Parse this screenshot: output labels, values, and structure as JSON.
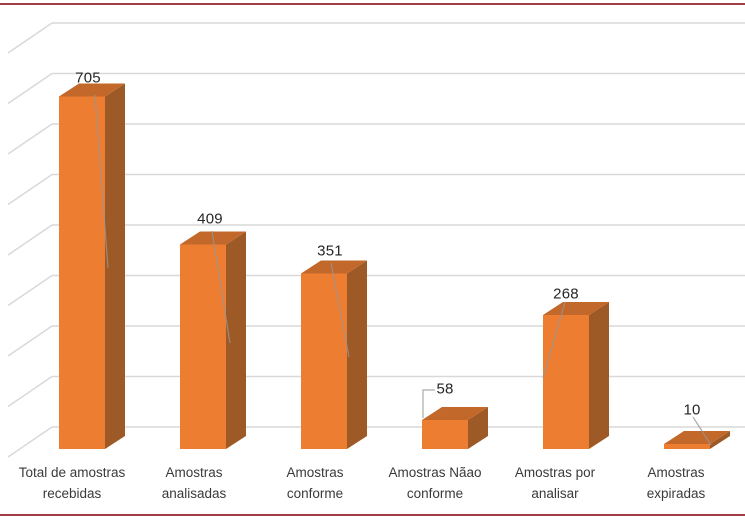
{
  "chart_data": {
    "type": "bar",
    "variant": "3d-column",
    "categories": [
      "Total de amostras recebidas",
      "Amostras analisadas",
      "Amostras conforme",
      "Amostras Nãao conforme",
      "Amostras por analisar",
      "Amostras expiradas"
    ],
    "category_lines": [
      [
        "Total de amostras",
        "recebidas"
      ],
      [
        "Amostras",
        "analisadas"
      ],
      [
        "Amostras",
        "conforme"
      ],
      [
        "Amostras Nãao",
        "conforme"
      ],
      [
        "Amostras por",
        "analisar"
      ],
      [
        "Amostras",
        "expiradas"
      ]
    ],
    "values": [
      705,
      409,
      351,
      58,
      268,
      10
    ],
    "data_labels": [
      "705",
      "409",
      "351",
      "58",
      "268",
      "10"
    ],
    "title": "",
    "xlabel": "",
    "ylabel": "",
    "ylim": [
      0,
      800
    ],
    "gridline_step": 100,
    "grid": true,
    "legend": false,
    "y_tick_labels_visible": false,
    "colors": {
      "bar_front": "#ED7D31",
      "bar_top": "#C2682A",
      "bar_side": "#9E5A26",
      "gridline": "#D9D9D9",
      "leader_line": "rgba(150,150,150,0.8)",
      "data_label_text": "#262626",
      "category_text": "#3a3a3a",
      "horizontal_rule": "#A13E44",
      "background": "#FFFFFF"
    }
  }
}
